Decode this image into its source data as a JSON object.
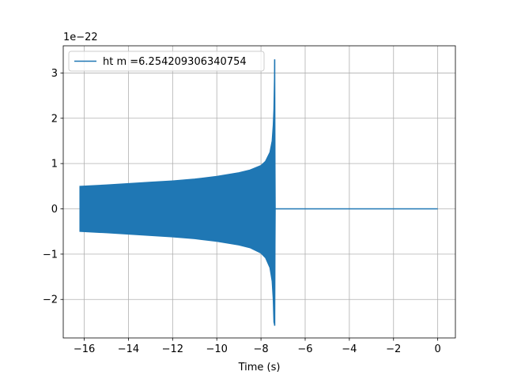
{
  "chart_data": {
    "type": "line",
    "title": "",
    "xlabel": "Time (s)",
    "ylabel": "",
    "y_offset_label": "1e−22",
    "xlim": [
      -16.95,
      0.8
    ],
    "ylim": [
      -2.85,
      3.6
    ],
    "x_ticks": [
      -16,
      -14,
      -12,
      -10,
      -8,
      -6,
      -4,
      -2,
      0
    ],
    "x_tick_labels": [
      "−16",
      "−14",
      "−12",
      "−10",
      "−8",
      "−6",
      "−4",
      "−2",
      "0"
    ],
    "y_ticks": [
      -2,
      -1,
      0,
      1,
      2,
      3
    ],
    "y_tick_labels": [
      "−2",
      "−1",
      "0",
      "1",
      "2",
      "3"
    ],
    "grid": true,
    "legend_position": "top-left",
    "series": [
      {
        "name": "ht m =6.254209306340754",
        "color": "#1f77b4",
        "envelope_upper": [
          [
            -16.2,
            0.5
          ],
          [
            -15,
            0.53
          ],
          [
            -14,
            0.56
          ],
          [
            -13,
            0.59
          ],
          [
            -12,
            0.62
          ],
          [
            -11,
            0.66
          ],
          [
            -10,
            0.72
          ],
          [
            -9,
            0.8
          ],
          [
            -8.5,
            0.86
          ],
          [
            -8.0,
            0.96
          ],
          [
            -7.8,
            1.05
          ],
          [
            -7.6,
            1.25
          ],
          [
            -7.5,
            1.5
          ],
          [
            -7.45,
            1.85
          ],
          [
            -7.42,
            2.2
          ],
          [
            -7.38,
            3.3
          ],
          [
            -7.35,
            0.0
          ]
        ],
        "envelope_lower": [
          [
            -16.2,
            -0.5
          ],
          [
            -15,
            -0.53
          ],
          [
            -14,
            -0.56
          ],
          [
            -13,
            -0.59
          ],
          [
            -12,
            -0.62
          ],
          [
            -11,
            -0.66
          ],
          [
            -10,
            -0.72
          ],
          [
            -9,
            -0.8
          ],
          [
            -8.5,
            -0.86
          ],
          [
            -8.0,
            -0.98
          ],
          [
            -7.8,
            -1.08
          ],
          [
            -7.6,
            -1.3
          ],
          [
            -7.5,
            -1.6
          ],
          [
            -7.45,
            -2.0
          ],
          [
            -7.42,
            -2.5
          ],
          [
            -7.38,
            -2.58
          ],
          [
            -7.35,
            0.0
          ]
        ],
        "flat_segment": [
          [
            -7.35,
            0.0
          ],
          [
            0.0,
            0.0
          ]
        ]
      }
    ]
  }
}
